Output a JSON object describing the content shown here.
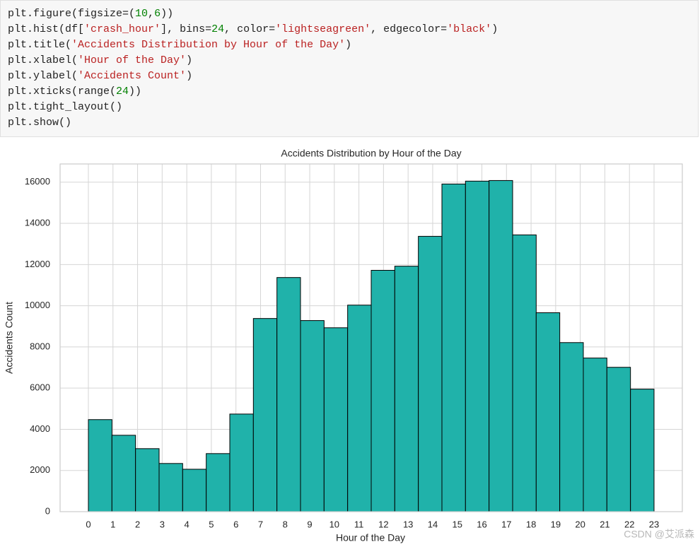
{
  "code": {
    "lines": [
      [
        {
          "text": "plt.figure(figsize=("
        },
        {
          "text": "10",
          "color": "#008000"
        },
        {
          "text": ","
        },
        {
          "text": "6",
          "color": "#008000"
        },
        {
          "text": "))"
        }
      ],
      [
        {
          "text": "plt.hist(df["
        },
        {
          "text": "'crash_hour'",
          "color": "#ba2121"
        },
        {
          "text": "], bins="
        },
        {
          "text": "24",
          "color": "#008000"
        },
        {
          "text": ", color="
        },
        {
          "text": "'lightseagreen'",
          "color": "#ba2121"
        },
        {
          "text": ", edgecolor="
        },
        {
          "text": "'black'",
          "color": "#ba2121"
        },
        {
          "text": ")"
        }
      ],
      [
        {
          "text": "plt.title("
        },
        {
          "text": "'Accidents Distribution by Hour of the Day'",
          "color": "#ba2121"
        },
        {
          "text": ")"
        }
      ],
      [
        {
          "text": "plt.xlabel("
        },
        {
          "text": "'Hour of the Day'",
          "color": "#ba2121"
        },
        {
          "text": ")"
        }
      ],
      [
        {
          "text": "plt.ylabel("
        },
        {
          "text": "'Accidents Count'",
          "color": "#ba2121"
        },
        {
          "text": ")"
        }
      ],
      [
        {
          "text": "plt.xticks(range("
        },
        {
          "text": "24",
          "color": "#008000"
        },
        {
          "text": "))"
        }
      ],
      [
        {
          "text": "plt.tight_layout()"
        }
      ],
      [
        {
          "text": "plt.show()"
        }
      ]
    ]
  },
  "chart_data": {
    "type": "histogram",
    "title": "Accidents Distribution by Hour of the Day",
    "x_label": "Hour of the Day",
    "y_label": "Accidents Count",
    "bins": [
      0,
      0.9583,
      1.9167,
      2.875,
      3.8333,
      4.7917,
      5.75,
      6.7083,
      7.6667,
      8.625,
      9.5833,
      10.5417,
      11.5,
      12.4583,
      13.4167,
      14.375,
      15.3333,
      16.2917,
      17.25,
      18.2083,
      19.1667,
      20.125,
      21.0833,
      22.0417,
      23
    ],
    "values": [
      4470,
      3710,
      3060,
      2340,
      2060,
      2820,
      4740,
      9380,
      11370,
      9280,
      8930,
      10030,
      11720,
      11920,
      13370,
      15910,
      16050,
      16080,
      13440,
      9660,
      8210,
      7460,
      7010,
      5950
    ],
    "color": "#20b2aa",
    "edgecolor": "#000000",
    "xlim": [
      -1.15,
      24.15
    ],
    "xticks": [
      0,
      1,
      2,
      3,
      4,
      5,
      6,
      7,
      8,
      9,
      10,
      11,
      12,
      13,
      14,
      15,
      16,
      17,
      18,
      19,
      20,
      21,
      22,
      23
    ],
    "ylim": [
      0,
      16884
    ],
    "yticks": [
      0,
      2000,
      4000,
      6000,
      8000,
      10000,
      12000,
      14000,
      16000
    ],
    "grid": true
  },
  "watermark": "CSDN @艾派森"
}
